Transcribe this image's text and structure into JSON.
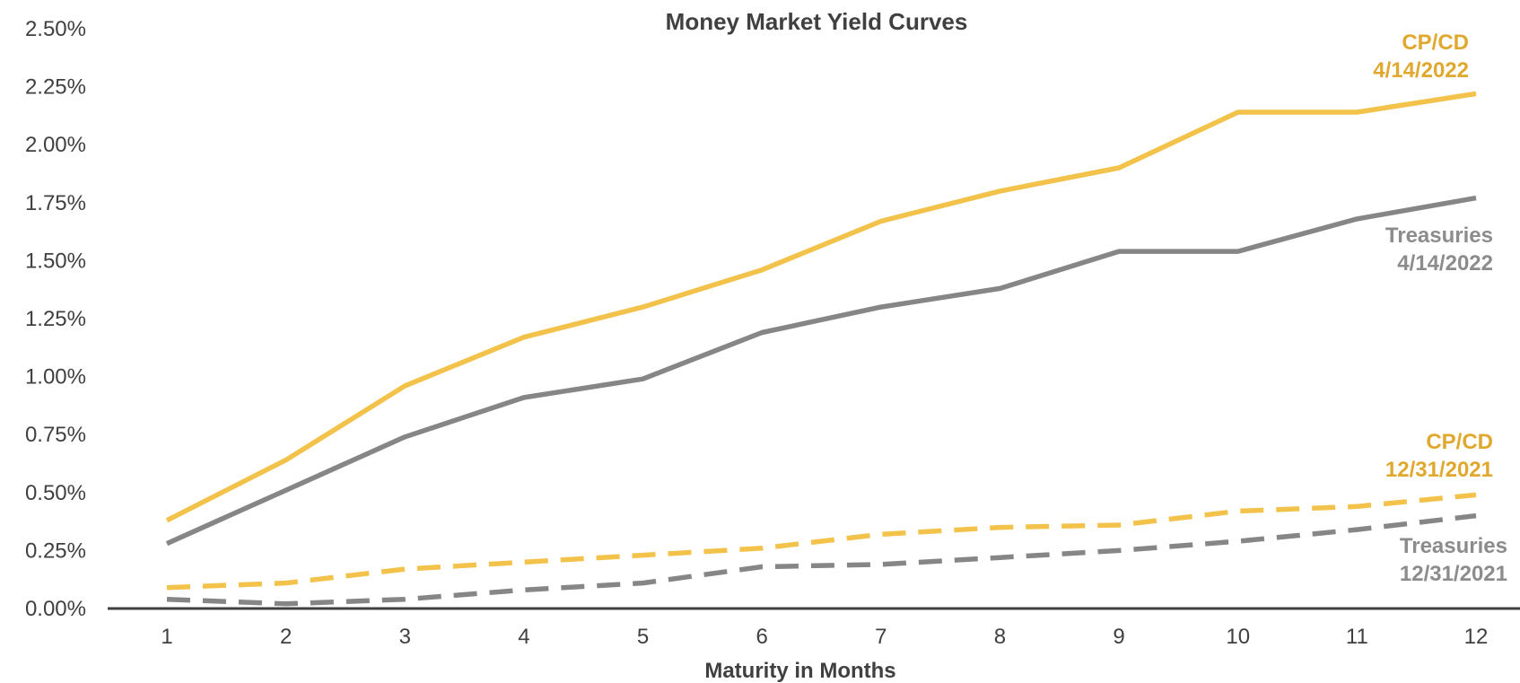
{
  "chart_data": {
    "type": "line",
    "title": "Money Market Yield Curves",
    "xlabel": "Maturity in Months",
    "ylabel": "",
    "x": [
      1,
      2,
      3,
      4,
      5,
      6,
      7,
      8,
      9,
      10,
      11,
      12
    ],
    "x_tick_labels": [
      "1",
      "2",
      "3",
      "4",
      "5",
      "6",
      "7",
      "8",
      "9",
      "10",
      "11",
      "12"
    ],
    "ylim": [
      0,
      2.5
    ],
    "y_ticks": [
      0,
      0.25,
      0.5,
      0.75,
      1.0,
      1.25,
      1.5,
      1.75,
      2.0,
      2.25,
      2.5
    ],
    "y_tick_labels": [
      "0.00%",
      "0.25%",
      "0.50%",
      "0.75%",
      "1.00%",
      "1.25%",
      "1.50%",
      "1.75%",
      "2.00%",
      "2.25%",
      "2.50%"
    ],
    "grid": false,
    "legend": "direct labels at right end of each line",
    "series": [
      {
        "id": "cpcd_2022",
        "name_lines": [
          "CP/CD",
          "4/14/2022"
        ],
        "color": "#F2C24A",
        "label_color": "#E0A82E",
        "dash": "solid",
        "values": [
          0.38,
          0.64,
          0.96,
          1.17,
          1.3,
          1.46,
          1.67,
          1.8,
          1.9,
          2.14,
          2.14,
          2.22
        ]
      },
      {
        "id": "tsy_2022",
        "name_lines": [
          "Treasuries",
          "4/14/2022"
        ],
        "color": "#868686",
        "label_color": "#8C8C8C",
        "dash": "solid",
        "values": [
          0.28,
          0.51,
          0.74,
          0.91,
          0.99,
          1.19,
          1.3,
          1.38,
          1.54,
          1.54,
          1.68,
          1.77
        ]
      },
      {
        "id": "cpcd_2021",
        "name_lines": [
          "CP/CD",
          "12/31/2021"
        ],
        "color": "#F2C24A",
        "label_color": "#E0A82E",
        "dash": "dashed",
        "values": [
          0.09,
          0.11,
          0.17,
          0.2,
          0.23,
          0.26,
          0.32,
          0.35,
          0.36,
          0.42,
          0.44,
          0.49
        ]
      },
      {
        "id": "tsy_2021",
        "name_lines": [
          "Treasuries",
          "12/31/2021"
        ],
        "color": "#868686",
        "label_color": "#8C8C8C",
        "dash": "dashed",
        "values": [
          0.04,
          0.02,
          0.04,
          0.08,
          0.11,
          0.18,
          0.19,
          0.22,
          0.25,
          0.29,
          0.34,
          0.4
        ]
      }
    ]
  }
}
